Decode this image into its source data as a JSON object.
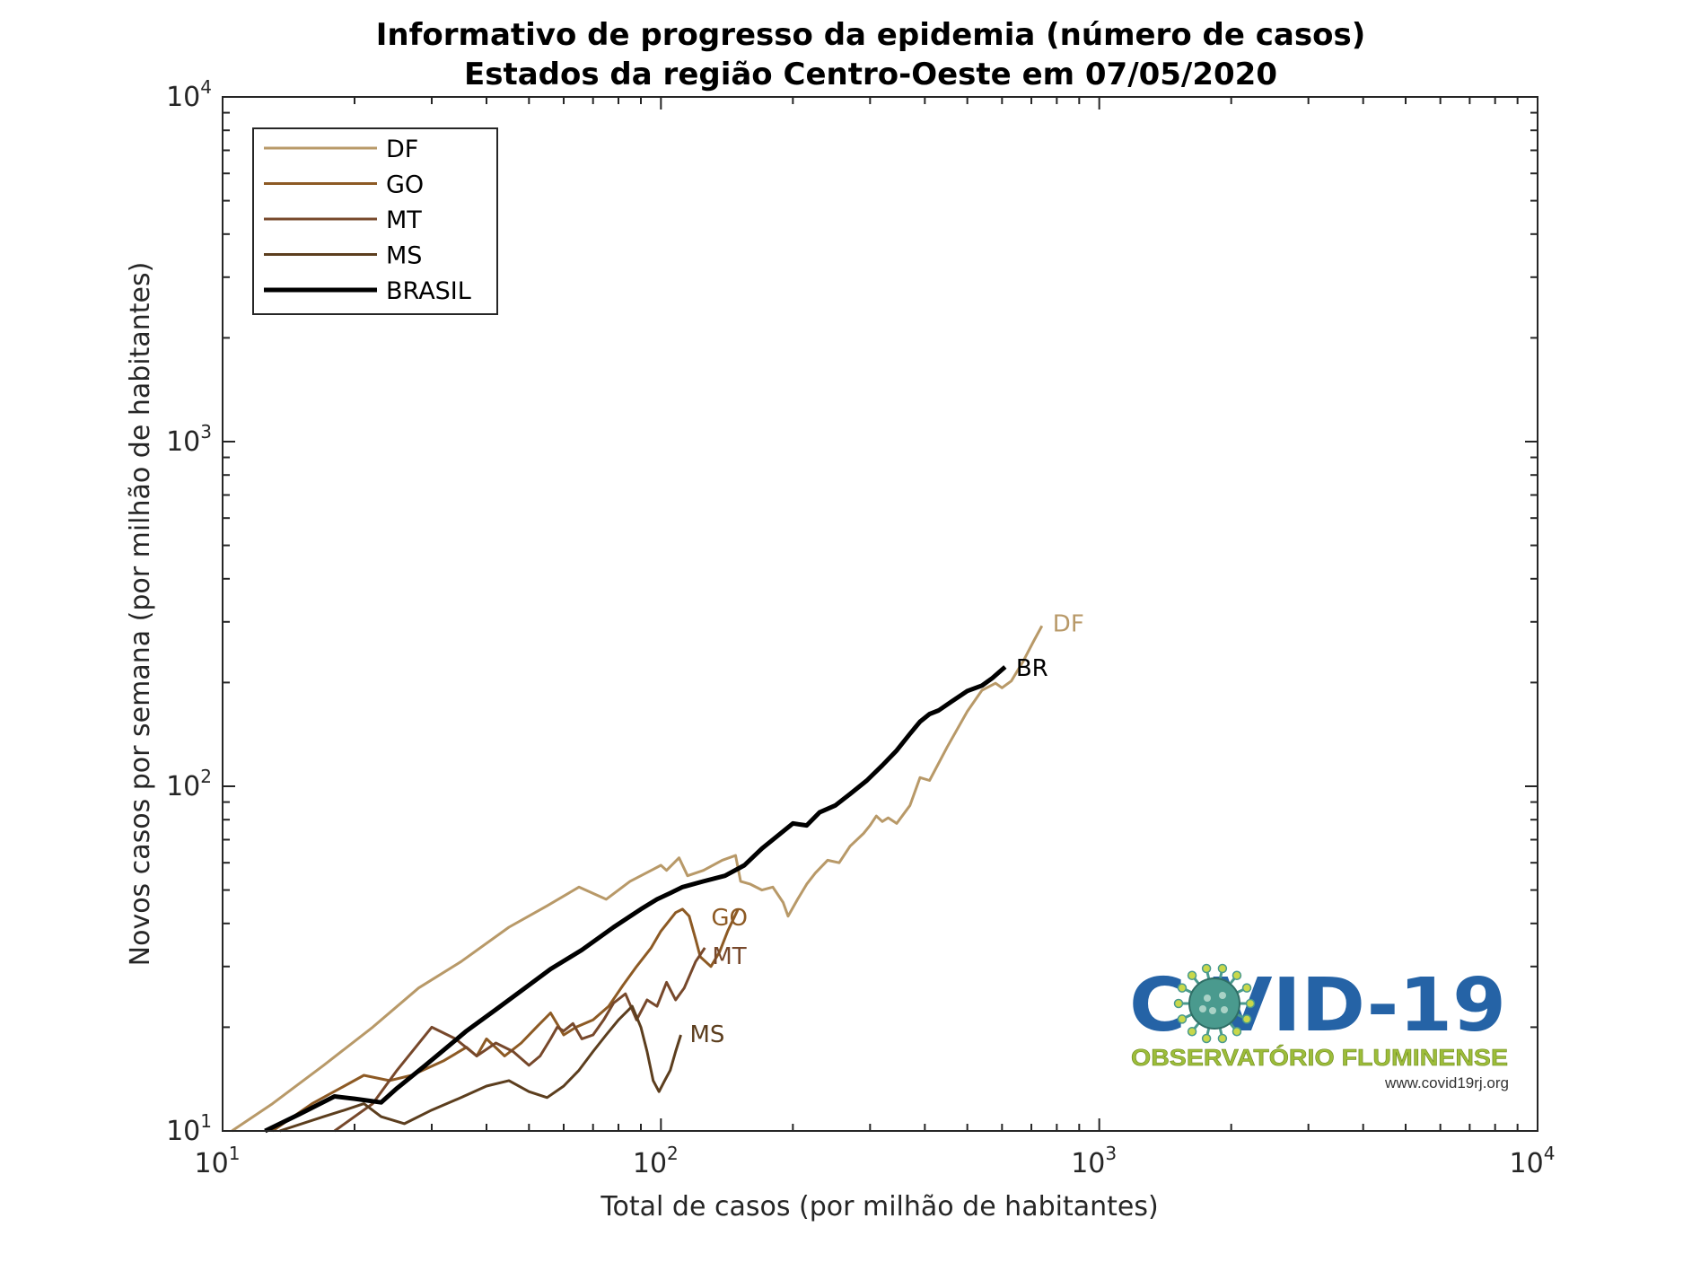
{
  "chart_data": {
    "type": "line",
    "title": [
      "Informativo de progresso da epidemia (número de casos)",
      "Estados da região Centro-Oeste  em 07/05/2020"
    ],
    "xlabel": "Total de casos (por milhão de habitantes)",
    "ylabel": "Novos casos por semana (por milhão de habitantes)",
    "x_scale": "log",
    "y_scale": "log",
    "xlim": [
      10,
      10000
    ],
    "ylim": [
      10,
      10000
    ],
    "x_ticks": [
      {
        "base": "10",
        "exp": "1"
      },
      {
        "base": "10",
        "exp": "2"
      },
      {
        "base": "10",
        "exp": "3"
      },
      {
        "base": "10",
        "exp": "4"
      }
    ],
    "y_ticks": [
      {
        "base": "10",
        "exp": "1"
      },
      {
        "base": "10",
        "exp": "2"
      },
      {
        "base": "10",
        "exp": "3"
      },
      {
        "base": "10",
        "exp": "4"
      }
    ],
    "legend_position": "top-left",
    "series": [
      {
        "name": "DF",
        "end_label": "DF",
        "color": "#b89968",
        "width": 3,
        "points": [
          [
            10.5,
            10
          ],
          [
            13,
            12
          ],
          [
            17,
            15.5
          ],
          [
            22,
            20
          ],
          [
            28,
            26
          ],
          [
            35,
            31
          ],
          [
            45,
            39
          ],
          [
            55,
            45
          ],
          [
            65,
            51
          ],
          [
            75,
            47
          ],
          [
            85,
            53
          ],
          [
            95,
            57
          ],
          [
            100,
            59
          ],
          [
            103,
            57
          ],
          [
            110,
            62
          ],
          [
            115,
            55
          ],
          [
            125,
            57
          ],
          [
            138,
            61
          ],
          [
            148,
            63
          ],
          [
            152,
            53
          ],
          [
            160,
            52
          ],
          [
            170,
            50
          ],
          [
            180,
            51
          ],
          [
            190,
            46
          ],
          [
            195,
            42
          ],
          [
            205,
            47
          ],
          [
            215,
            52
          ],
          [
            225,
            56
          ],
          [
            240,
            61
          ],
          [
            255,
            60
          ],
          [
            270,
            67
          ],
          [
            290,
            73
          ],
          [
            300,
            77
          ],
          [
            310,
            82
          ],
          [
            320,
            79
          ],
          [
            330,
            81
          ],
          [
            345,
            78
          ],
          [
            370,
            88
          ],
          [
            390,
            106
          ],
          [
            410,
            104
          ],
          [
            450,
            130
          ],
          [
            500,
            165
          ],
          [
            540,
            190
          ],
          [
            580,
            199
          ],
          [
            600,
            193
          ],
          [
            630,
            202
          ],
          [
            670,
            230
          ],
          [
            710,
            265
          ],
          [
            740,
            292
          ]
        ]
      },
      {
        "name": "GO",
        "end_label": "GO",
        "color": "#8d5a24",
        "width": 3,
        "points": [
          [
            13,
            10
          ],
          [
            16,
            12
          ],
          [
            21,
            14.5
          ],
          [
            24,
            14
          ],
          [
            27,
            14.5
          ],
          [
            32,
            16
          ],
          [
            36,
            17.5
          ],
          [
            38,
            16.5
          ],
          [
            40,
            18.5
          ],
          [
            44,
            16.5
          ],
          [
            48,
            18
          ],
          [
            52,
            20
          ],
          [
            56,
            22
          ],
          [
            60,
            19
          ],
          [
            64,
            20
          ],
          [
            70,
            21
          ],
          [
            76,
            23
          ],
          [
            82,
            26.5
          ],
          [
            88,
            30
          ],
          [
            95,
            34
          ],
          [
            100,
            38
          ],
          [
            108,
            43
          ],
          [
            112,
            44
          ],
          [
            116,
            42
          ],
          [
            120,
            36
          ],
          [
            123,
            32
          ],
          [
            130,
            30
          ],
          [
            136,
            33
          ],
          [
            142,
            38
          ],
          [
            150,
            44
          ]
        ]
      },
      {
        "name": "MT",
        "end_label": "MT",
        "color": "#77482b",
        "width": 3,
        "points": [
          [
            18,
            10
          ],
          [
            22,
            12
          ],
          [
            25,
            15
          ],
          [
            30,
            20
          ],
          [
            34,
            18.5
          ],
          [
            38,
            16.5
          ],
          [
            42,
            18
          ],
          [
            46,
            17
          ],
          [
            50,
            15.5
          ],
          [
            53,
            16.5
          ],
          [
            56,
            18.5
          ],
          [
            58,
            20
          ],
          [
            60,
            19.5
          ],
          [
            63,
            20.5
          ],
          [
            66,
            18.5
          ],
          [
            70,
            19
          ],
          [
            74,
            21
          ],
          [
            78,
            23.5
          ],
          [
            83,
            25
          ],
          [
            88,
            21
          ],
          [
            93,
            24
          ],
          [
            98,
            23
          ],
          [
            103,
            27
          ],
          [
            108,
            24
          ],
          [
            113,
            26
          ],
          [
            120,
            31
          ],
          [
            126,
            34
          ]
        ]
      },
      {
        "name": "MS",
        "end_label": "MS",
        "color": "#5c3e1e",
        "width": 3,
        "points": [
          [
            13.5,
            10
          ],
          [
            17,
            11
          ],
          [
            19,
            11.5
          ],
          [
            21,
            12
          ],
          [
            23,
            11
          ],
          [
            26,
            10.5
          ],
          [
            30,
            11.5
          ],
          [
            35,
            12.5
          ],
          [
            40,
            13.5
          ],
          [
            45,
            14
          ],
          [
            50,
            13
          ],
          [
            55,
            12.5
          ],
          [
            60,
            13.5
          ],
          [
            65,
            15
          ],
          [
            70,
            17
          ],
          [
            75,
            19
          ],
          [
            80,
            21
          ],
          [
            86,
            23
          ],
          [
            90,
            20
          ],
          [
            93,
            17
          ],
          [
            96,
            14
          ],
          [
            99,
            13
          ],
          [
            102,
            14
          ],
          [
            105,
            15
          ],
          [
            108,
            17
          ],
          [
            111,
            19
          ]
        ]
      },
      {
        "name": "BRASIL",
        "end_label": "BR",
        "color": "#000000",
        "width": 5,
        "points": [
          [
            12.5,
            10
          ],
          [
            15,
            11.2
          ],
          [
            18,
            12.6
          ],
          [
            20,
            12.4
          ],
          [
            23,
            12.1
          ],
          [
            25,
            13.3
          ],
          [
            29,
            15.5
          ],
          [
            32,
            17.2
          ],
          [
            36,
            19.5
          ],
          [
            42,
            22.5
          ],
          [
            50,
            26.5
          ],
          [
            56,
            29.5
          ],
          [
            66,
            33.5
          ],
          [
            78,
            39
          ],
          [
            90,
            44
          ],
          [
            98,
            47
          ],
          [
            105,
            49
          ],
          [
            112,
            51
          ],
          [
            125,
            53
          ],
          [
            140,
            55
          ],
          [
            155,
            59
          ],
          [
            170,
            66
          ],
          [
            185,
            72
          ],
          [
            200,
            78
          ],
          [
            215,
            77
          ],
          [
            230,
            84
          ],
          [
            250,
            88
          ],
          [
            270,
            95
          ],
          [
            295,
            104
          ],
          [
            320,
            115
          ],
          [
            345,
            127
          ],
          [
            370,
            142
          ],
          [
            390,
            154
          ],
          [
            410,
            162
          ],
          [
            430,
            166
          ],
          [
            460,
            176
          ],
          [
            500,
            189
          ],
          [
            540,
            196
          ],
          [
            570,
            206
          ],
          [
            610,
            222
          ]
        ]
      }
    ]
  },
  "logo": {
    "main_text": "C  VID-19",
    "sub_text": "OBSERVATÓRIO FLUMINENSE",
    "url": "www.covid19rj.org",
    "virus_color": "#4a9a8e"
  }
}
